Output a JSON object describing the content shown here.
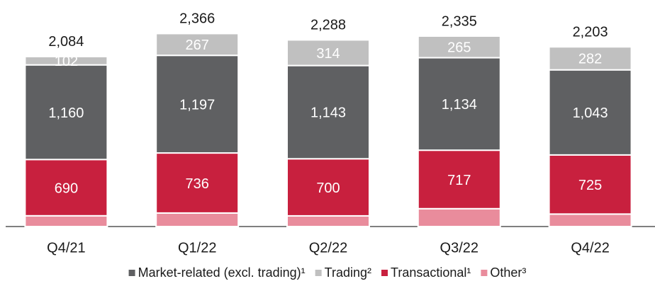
{
  "chart_data": {
    "type": "stacked-bar",
    "categories": [
      "Q4/21",
      "Q1/22",
      "Q2/22",
      "Q3/22",
      "Q4/22"
    ],
    "series": [
      {
        "name": "Other³",
        "color": "#e98c9c",
        "values": [
          132,
          166,
          131,
          219,
          153
        ]
      },
      {
        "name": "Transactional¹",
        "color": "#c8203e",
        "values": [
          690,
          736,
          700,
          717,
          725
        ]
      },
      {
        "name": "Market-related (excl. trading)¹",
        "color": "#5f6062",
        "values": [
          1160,
          1197,
          1143,
          1134,
          1043
        ],
        "value_labels": [
          "1,160",
          "1,197",
          "1,143",
          "1,134",
          "1,043"
        ]
      },
      {
        "name": "Trading²",
        "color": "#c0c0c0",
        "values": [
          102,
          267,
          314,
          265,
          282
        ]
      }
    ],
    "totals": [
      2084,
      2366,
      2288,
      2335,
      2203
    ],
    "total_labels": [
      "2,084",
      "2,366",
      "2,288",
      "2,335",
      "2,203"
    ],
    "legend_order": [
      2,
      3,
      1,
      0
    ],
    "ylim": [
      0,
      2500
    ]
  }
}
